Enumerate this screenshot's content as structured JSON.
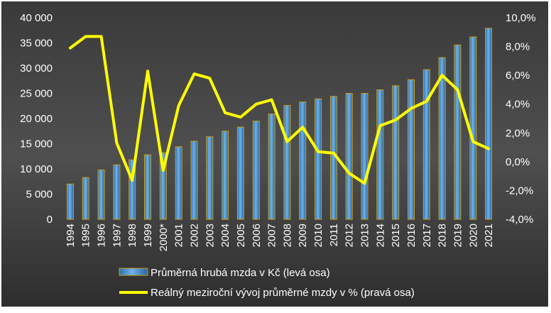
{
  "chart_data": {
    "type": "bar+line",
    "title": "",
    "categories": [
      "1994",
      "1995",
      "1996",
      "1997",
      "1998",
      "1999",
      "2000*",
      "2001",
      "2002",
      "2003",
      "2004",
      "2005",
      "2006",
      "2007",
      "2008",
      "2009",
      "2010",
      "2011",
      "2012",
      "2013",
      "2014",
      "2015",
      "2016",
      "2017",
      "2018",
      "2019",
      "2020",
      "2021"
    ],
    "series": [
      {
        "name": "Průměrná hrubá mzda v Kč (levá osa)",
        "type": "bar",
        "axis": "left",
        "values": [
          7000,
          8300,
          9800,
          10800,
          11800,
          12800,
          13200,
          14400,
          15500,
          16400,
          17500,
          18300,
          19500,
          20900,
          22600,
          23300,
          23900,
          24400,
          25000,
          25000,
          25700,
          26500,
          27700,
          29700,
          32100,
          34600,
          36200,
          37900
        ]
      },
      {
        "name": "Reálný meziroční vývoj průměrné mzdy v % (pravá osa)",
        "type": "line",
        "axis": "right",
        "values": [
          7.9,
          8.7,
          8.7,
          1.3,
          -1.3,
          6.3,
          -0.6,
          3.9,
          6.1,
          5.8,
          3.4,
          3.1,
          4.0,
          4.3,
          1.4,
          2.4,
          0.7,
          0.6,
          -0.8,
          -1.5,
          2.5,
          2.9,
          3.7,
          4.2,
          6.0,
          5.0,
          1.4,
          0.9
        ]
      }
    ],
    "y_left": {
      "min": 0,
      "max": 40000,
      "step": 5000,
      "ticks": [
        "0",
        "5 000",
        "10 000",
        "15 000",
        "20 000",
        "25 000",
        "30 000",
        "35 000",
        "40 000"
      ]
    },
    "y_right": {
      "min": -4,
      "max": 10,
      "step": 2,
      "ticks": [
        "-4,0%",
        "-2,0%",
        "0,0%",
        "2,0%",
        "4,0%",
        "6,0%",
        "8,0%",
        "10,0%"
      ]
    },
    "grid": false,
    "legend_position": "bottom",
    "colors": {
      "bar": "#4a8fd0",
      "bar_edge": "#c8a018",
      "line": "#ffff00",
      "background": "#444444",
      "text": "#ffffff"
    }
  }
}
